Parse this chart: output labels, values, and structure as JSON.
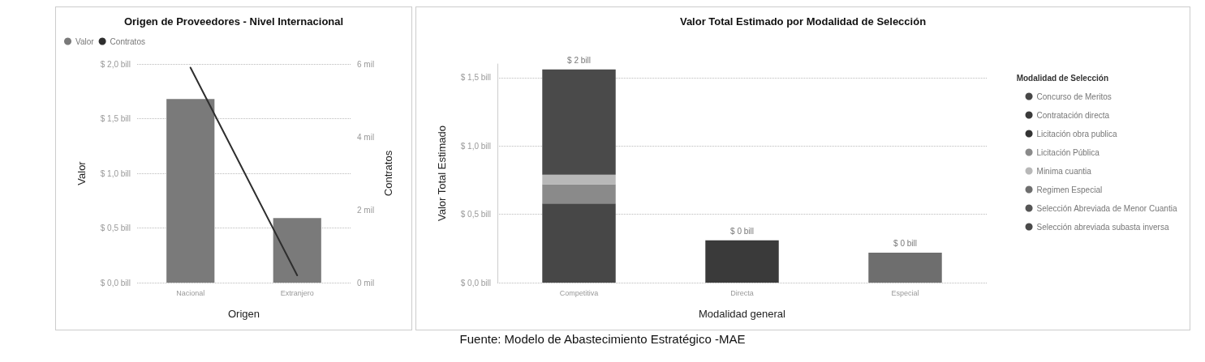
{
  "chart_data": [
    {
      "type": "bar",
      "title": "Origen de Proveedores - Nivel Internacional",
      "xlabel": "Origen",
      "ylabel": "Valor",
      "y2label": "Contratos",
      "categories": [
        "Nacional",
        "Extranjero"
      ],
      "series": [
        {
          "name": "Valor",
          "color": "#7a7a7a",
          "values": [
            1.68,
            0.59
          ]
        },
        {
          "name": "Contratos",
          "type": "line",
          "axis": "y2",
          "color": "#2e2e2e",
          "values": [
            5.9,
            0.2
          ]
        }
      ],
      "ylim": [
        0,
        2
      ],
      "yticks": [
        {
          "value": 0,
          "label": "$ 0,0 bill"
        },
        {
          "value": 0.5,
          "label": "$ 0,5 bill"
        },
        {
          "value": 1,
          "label": "$ 1,0 bill"
        },
        {
          "value": 1.5,
          "label": "$ 1,5 bill"
        },
        {
          "value": 2,
          "label": "$ 2,0 bill"
        }
      ],
      "y2lim": [
        0,
        6
      ],
      "y2ticks": [
        {
          "value": 0,
          "label": "0 mil"
        },
        {
          "value": 2,
          "label": "2 mil"
        },
        {
          "value": 4,
          "label": "4 mil"
        },
        {
          "value": 6,
          "label": "6 mil"
        }
      ],
      "grid": "y",
      "legend": "top left",
      "marker": "none"
    },
    {
      "type": "bar",
      "title": "Valor Total Estimado por Modalidad de Selección",
      "xlabel": "Modalidad general",
      "ylabel": "Valor Total Estimado",
      "legend_title": "Modalidad de Selección",
      "categories": [
        "Competitiva",
        "Directa",
        "Especial"
      ],
      "stacked": true,
      "series": [
        {
          "name": "Concurso de Meritos",
          "color": "#474747",
          "values": [
            0.58,
            null,
            null
          ]
        },
        {
          "name": "Contratación directa",
          "color": "#3a3a3a",
          "values": [
            null,
            0.31,
            null
          ]
        },
        {
          "name": "Licitación obra publica",
          "color": "#333333",
          "values": [
            null,
            null,
            null
          ]
        },
        {
          "name": "Licitación Pública",
          "color": "#8a8a8a",
          "values": [
            0.14,
            null,
            null
          ]
        },
        {
          "name": "Minima cuantia",
          "color": "#b8b8b8",
          "values": [
            0.07,
            null,
            null
          ]
        },
        {
          "name": "Regimen Especial",
          "color": "#6e6e6e",
          "values": [
            null,
            null,
            0.22
          ]
        },
        {
          "name": "Selección Abreviada de Menor Cuantia",
          "color": "#555555",
          "values": [
            null,
            null,
            null
          ]
        },
        {
          "name": "Selección abreviada subasta inversa",
          "color": "#4a4a4a",
          "values": [
            0.77,
            null,
            null
          ]
        }
      ],
      "totals": [
        "$ 2 bill",
        "$ 0 bill",
        "$ 0 bill"
      ],
      "ylim": [
        0,
        1.6
      ],
      "yticks": [
        {
          "value": 0,
          "label": "$ 0,0 bill"
        },
        {
          "value": 0.5,
          "label": "$ 0,5 bill"
        },
        {
          "value": 1,
          "label": "$ 1,0 bill"
        },
        {
          "value": 1.5,
          "label": "$ 1,5 bill"
        }
      ],
      "grid": "y",
      "legend": "right",
      "annotations": [
        "Fuente: Modelo de Abastecimiento Estratégico -MAE"
      ]
    }
  ]
}
